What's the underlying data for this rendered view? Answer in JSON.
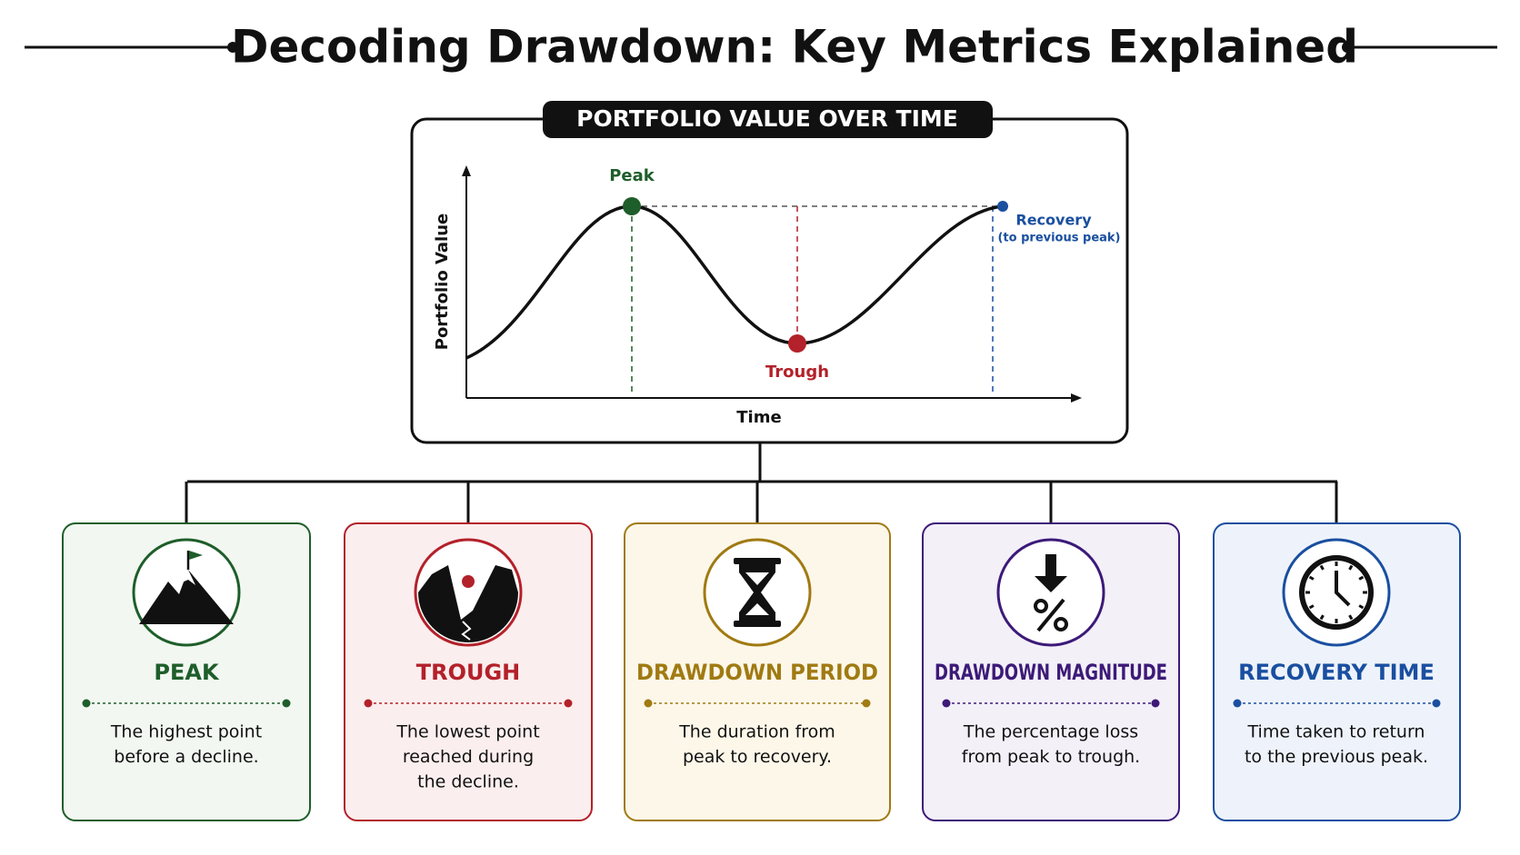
{
  "header": {
    "title": "Decoding Drawdown: Key Metrics Explained"
  },
  "panel": {
    "title": "PORTFOLIO VALUE OVER TIME",
    "y_axis_label": "Portfolio Value",
    "x_axis_label": "Time",
    "annotations": {
      "peak": "Peak",
      "trough": "Trough",
      "recovery": "Recovery",
      "recovery_note": "(to previous peak)"
    }
  },
  "cards": [
    {
      "title": "PEAK",
      "description": [
        "The highest point",
        "before a decline."
      ]
    },
    {
      "title": "TROUGH",
      "description": [
        "The lowest point",
        "reached during",
        "the decline."
      ]
    },
    {
      "title": "DRAWDOWN PERIOD",
      "description": [
        "The duration from",
        "peak to recovery."
      ]
    },
    {
      "title": "DRAWDOWN MAGNITUDE",
      "description": [
        "The percentage loss",
        "from peak to trough."
      ]
    },
    {
      "title": "RECOVERY TIME",
      "description": [
        "Time taken to return",
        "to the previous peak."
      ]
    }
  ]
}
